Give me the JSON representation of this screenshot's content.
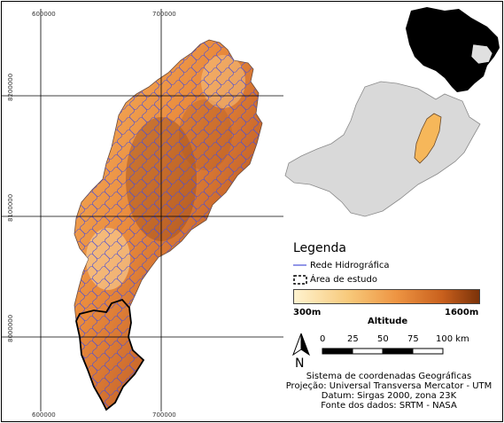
{
  "coordinates": {
    "x_top": [
      "600000",
      "700000"
    ],
    "x_bottom": [
      "600000",
      "700000"
    ],
    "y_left": [
      "8200000",
      "8100000",
      "8000000"
    ]
  },
  "legend": {
    "title": "Legenda",
    "rivers_label": "Rede Hidrográfica",
    "study_area_label": "Área de estudo",
    "altitude_min": "300m",
    "altitude_max": "1600m",
    "altitude_label": "Altitude"
  },
  "scale": {
    "ticks": [
      "0",
      "25",
      "50",
      "75",
      "100 km"
    ]
  },
  "north": {
    "label": "N"
  },
  "credits": {
    "line1": "Sistema de coordenadas Geográficas",
    "line2": "Projeção: Universal Transversa Mercator - UTM",
    "line3": "Datum: Sirgas 2000, zona 23K",
    "line4": "Fonte dos dados: SRTM - NASA"
  },
  "colors": {
    "river": "#4a4fd8",
    "terrain_low": "#fff3cf",
    "terrain_mid": "#ee9543",
    "terrain_high": "#7b3209",
    "state_fill": "#dcdcdc",
    "country_fill": "#000000",
    "highlight": "#f6b75a"
  }
}
